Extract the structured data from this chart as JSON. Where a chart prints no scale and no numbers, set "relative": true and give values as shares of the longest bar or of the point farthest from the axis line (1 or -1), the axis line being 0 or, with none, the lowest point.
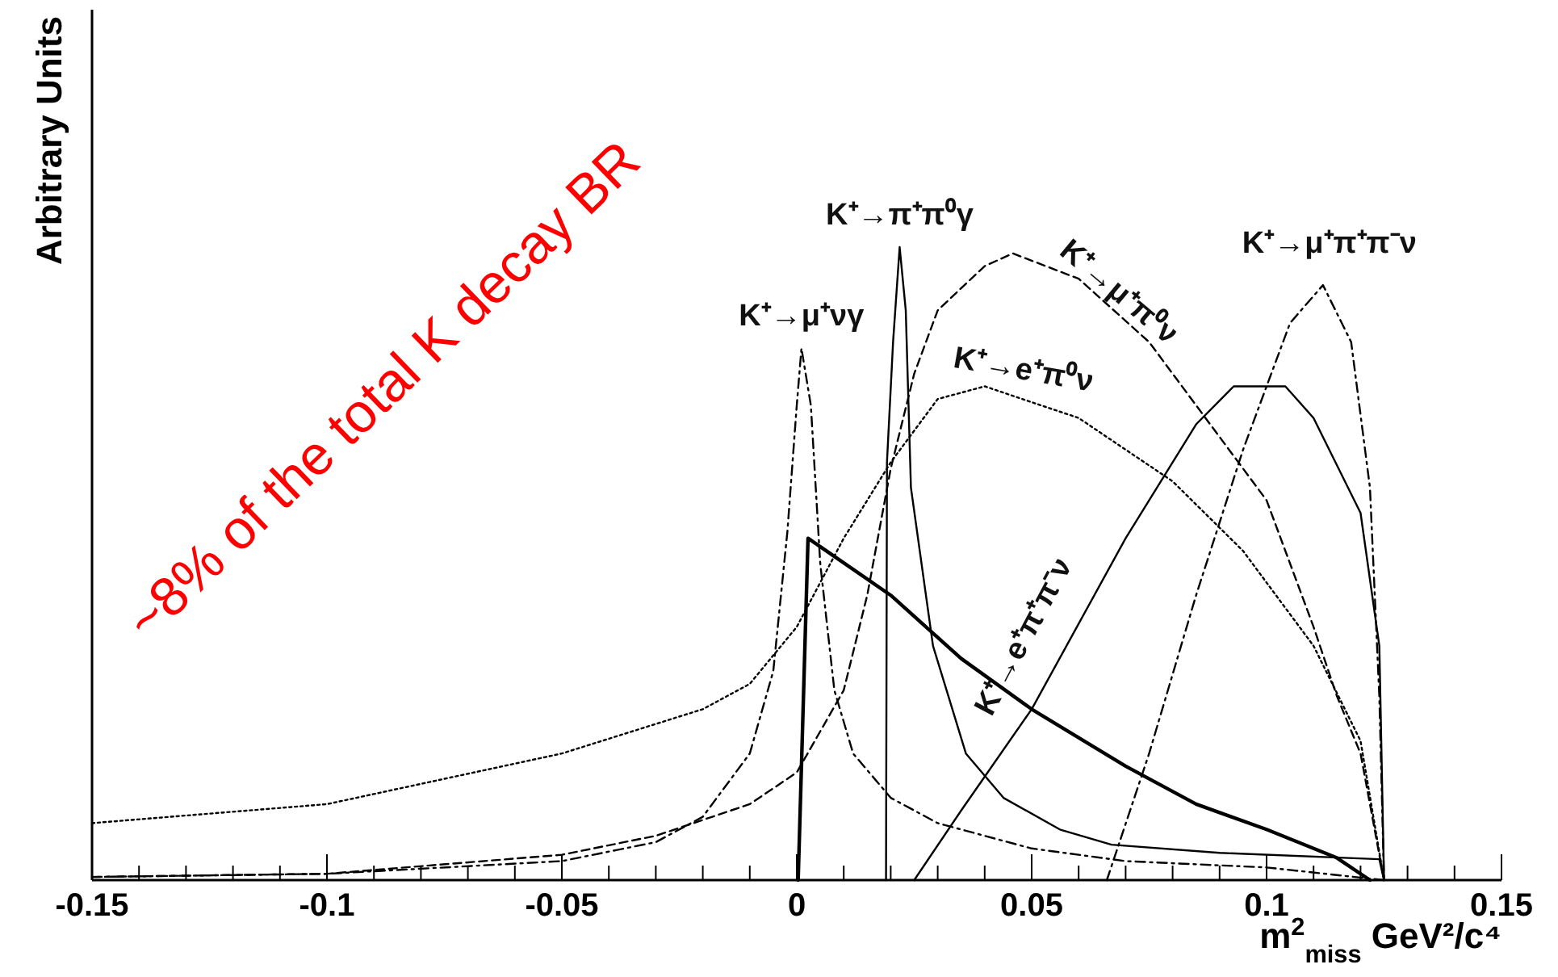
{
  "chart_data": {
    "type": "line",
    "relative": true,
    "xlabel": "m$^{2}$$_{miss}$ GeV²/c⁴",
    "ylabel": "Arbitrary Units",
    "xlim": [
      -0.15,
      0.15
    ],
    "xticks": [
      -0.15,
      {
        "value": -0.14,
        "label": null
      },
      {
        "value": -0.13,
        "label": null
      },
      {
        "value": -0.12,
        "label": null
      },
      {
        "value": -0.11,
        "label": null
      },
      -0.1,
      {
        "value": -0.09,
        "label": null
      },
      {
        "value": -0.08,
        "label": null
      },
      {
        "value": -0.07,
        "label": null
      },
      {
        "value": -0.06,
        "label": null
      },
      -0.05,
      {
        "value": -0.04,
        "label": null
      },
      {
        "value": -0.03,
        "label": null
      },
      {
        "value": -0.02,
        "label": null
      },
      {
        "value": -0.01,
        "label": null
      },
      0,
      {
        "value": 0.01,
        "label": null
      },
      {
        "value": 0.02,
        "label": null
      },
      {
        "value": 0.03,
        "label": null
      },
      {
        "value": 0.04,
        "label": null
      },
      0.05,
      {
        "value": 0.06,
        "label": null
      },
      {
        "value": 0.07,
        "label": null
      },
      {
        "value": 0.08,
        "label": null
      },
      {
        "value": 0.09,
        "label": null
      },
      0.1,
      {
        "value": 0.11,
        "label": null
      },
      {
        "value": 0.12,
        "label": null
      },
      {
        "value": 0.13,
        "label": null
      },
      {
        "value": 0.14,
        "label": null
      },
      0.15
    ],
    "annotations": [
      "~8% of the total K decay BR"
    ],
    "series": [
      {
        "name": "K⁺→μ⁺νγ",
        "color": "#000000",
        "line_style": "dashdot",
        "x": [
          -0.15,
          -0.1,
          -0.05,
          -0.03,
          -0.02,
          -0.01,
          -0.005,
          -0.002,
          0.0,
          0.001,
          0.003,
          0.005,
          0.008,
          0.012,
          0.02,
          0.03,
          0.05,
          0.07,
          0.1,
          0.125
        ],
        "values": [
          0.005,
          0.01,
          0.03,
          0.06,
          0.1,
          0.2,
          0.33,
          0.55,
          0.75,
          0.84,
          0.75,
          0.5,
          0.3,
          0.2,
          0.13,
          0.09,
          0.05,
          0.03,
          0.02,
          0
        ]
      },
      {
        "name": "K⁺→π⁺π⁰γ",
        "color": "#000000",
        "line_style": "solid",
        "x": [
          0.019,
          0.0192,
          0.0205,
          0.0219,
          0.0232,
          0.0243,
          0.029,
          0.036,
          0.044,
          0.056,
          0.067,
          0.09,
          0.124,
          0.125
        ],
        "values": [
          0,
          0.66,
          0.85,
          1,
          0.9,
          0.62,
          0.37,
          0.2,
          0.13,
          0.08,
          0.056,
          0.043,
          0.033,
          0
        ]
      },
      {
        "name": "K⁺→μ⁺π⁰ν",
        "color": "#000000",
        "line_style": "dashed",
        "x": [
          -0.15,
          -0.1,
          -0.05,
          -0.03,
          -0.01,
          0,
          0.01,
          0.015,
          0.02,
          0.025,
          0.03,
          0.04,
          0.046,
          0.06,
          0.075,
          0.09,
          0.1,
          0.11,
          0.115,
          0.12,
          0.125
        ],
        "values": [
          0.005,
          0.01,
          0.04,
          0.07,
          0.12,
          0.17,
          0.3,
          0.45,
          0.65,
          0.8,
          0.9,
          0.97,
          0.99,
          0.95,
          0.85,
          0.7,
          0.6,
          0.4,
          0.29,
          0.2,
          0
        ]
      },
      {
        "name": "K⁺→e⁺π⁰ν",
        "color": "#000000",
        "line_style": "dotted",
        "x": [
          -0.15,
          -0.1,
          -0.05,
          -0.02,
          -0.01,
          0,
          0.01,
          0.02,
          0.03,
          0.04,
          0.06,
          0.08,
          0.095,
          0.11,
          0.12,
          0.125
        ],
        "values": [
          0.09,
          0.12,
          0.2,
          0.27,
          0.31,
          0.4,
          0.54,
          0.66,
          0.76,
          0.78,
          0.73,
          0.63,
          0.52,
          0.37,
          0.22,
          0
        ]
      },
      {
        "name": "K⁺→e⁺π⁺π⁻ν",
        "color": "#000000",
        "line_style": "solid",
        "x": [
          0.025,
          0.035,
          0.05,
          0.07,
          0.085,
          0.093,
          0.104,
          0.11,
          0.12,
          0.124,
          0.125
        ],
        "values": [
          0,
          0.11,
          0.27,
          0.54,
          0.72,
          0.78,
          0.78,
          0.73,
          0.58,
          0.37,
          0
        ]
      },
      {
        "name": "K⁺→μ⁺π⁺π⁻ν",
        "color": "#000000",
        "line_style": "dashdot",
        "x": [
          0.066,
          0.075,
          0.085,
          0.095,
          0.105,
          0.112,
          0.118,
          0.122,
          0.124,
          0.125
        ],
        "values": [
          0,
          0.2,
          0.45,
          0.68,
          0.88,
          0.94,
          0.85,
          0.62,
          0.29,
          0
        ]
      },
      {
        "color": "#000000",
        "line_style": "solid",
        "x": [
          0.0003,
          0.0024,
          0.02,
          0.035,
          0.05,
          0.07,
          0.085,
          0.1,
          0.115,
          0.122
        ],
        "values": [
          0,
          0.54,
          0.45,
          0.35,
          0.27,
          0.18,
          0.12,
          0.08,
          0.035,
          0
        ]
      }
    ]
  }
}
